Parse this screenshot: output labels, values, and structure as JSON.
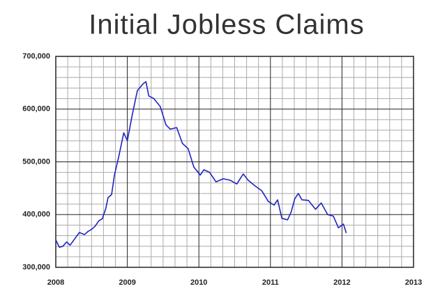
{
  "chart_data": {
    "type": "line",
    "title": "Initial Jobless Claims",
    "x": [
      2008.0,
      2008.05,
      2008.1,
      2008.15,
      2008.2,
      2008.27,
      2008.33,
      2008.4,
      2008.45,
      2008.5,
      2008.55,
      2008.6,
      2008.65,
      2008.7,
      2008.73,
      2008.78,
      2008.82,
      2008.88,
      2008.95,
      2009.0,
      2009.07,
      2009.14,
      2009.22,
      2009.26,
      2009.3,
      2009.37,
      2009.46,
      2009.54,
      2009.6,
      2009.69,
      2009.77,
      2009.85,
      2009.93,
      2010.02,
      2010.07,
      2010.15,
      2010.24,
      2010.34,
      2010.44,
      2010.53,
      2010.62,
      2010.69,
      2010.78,
      2010.88,
      2010.97,
      2011.05,
      2011.1,
      2011.16,
      2011.24,
      2011.29,
      2011.34,
      2011.39,
      2011.44,
      2011.53,
      2011.63,
      2011.71,
      2011.8,
      2011.88,
      2011.95,
      2012.02,
      2012.06
    ],
    "series": [
      {
        "name": "Initial Jobless Claims",
        "color": "#1f22c4",
        "values": [
          352000,
          338000,
          340000,
          348000,
          342000,
          355000,
          366000,
          362000,
          368000,
          372000,
          378000,
          388000,
          392000,
          412000,
          432000,
          438000,
          475000,
          510000,
          555000,
          540000,
          590000,
          635000,
          648000,
          652000,
          625000,
          620000,
          605000,
          570000,
          562000,
          565000,
          535000,
          525000,
          490000,
          475000,
          485000,
          480000,
          462000,
          468000,
          465000,
          458000,
          477000,
          465000,
          455000,
          445000,
          425000,
          418000,
          428000,
          393000,
          390000,
          405000,
          430000,
          440000,
          428000,
          427000,
          410000,
          422000,
          400000,
          397000,
          375000,
          382000,
          365000
        ]
      }
    ],
    "xlim": [
      2008,
      2013
    ],
    "xticks": [
      2008,
      2009,
      2010,
      2011,
      2012,
      2013
    ],
    "ylim": [
      300000,
      700000
    ],
    "yticks": [
      {
        "value": 300000,
        "label": "300,000"
      },
      {
        "value": 400000,
        "label": "400,000"
      },
      {
        "value": 500000,
        "label": "500,000"
      },
      {
        "value": 600000,
        "label": "600,000"
      },
      {
        "value": 700000,
        "label": "700,000"
      }
    ],
    "grid": true
  }
}
